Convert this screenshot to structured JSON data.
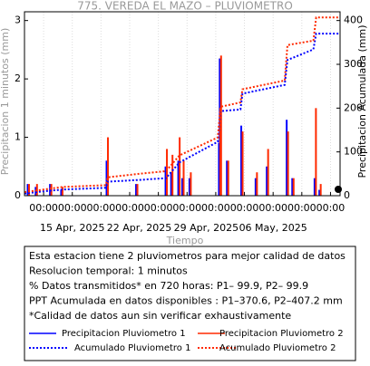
{
  "chart_data": {
    "type": "bar-line",
    "title": "775. VEREDA EL MAZO – PLUVIOMETRO",
    "x_label": "Tiempo",
    "y_label": "Precipitacion 1 minutos (mm)",
    "y2_label": "Precipitacion Acumulada (mm)",
    "xlim": [
      "2025-04-10T00:00",
      "2025-05-13T00:00"
    ],
    "ylim": [
      0,
      3.15
    ],
    "yticks": [
      0,
      1,
      2,
      3
    ],
    "y2lim": [
      0,
      420
    ],
    "y2ticks": [
      0,
      100,
      200,
      300,
      400
    ],
    "xticks": [
      {
        "value": "2025-04-12T00:00",
        "label": "00:00"
      },
      {
        "value": "2025-04-15T00:00",
        "label": "00:00"
      },
      {
        "value": "2025-04-18T00:00",
        "label": "00:00"
      },
      {
        "value": "2025-04-21T00:00",
        "label": "00:00"
      },
      {
        "value": "2025-04-24T00:00",
        "label": "00:00"
      },
      {
        "value": "2025-04-27T00:00",
        "label": "00:00"
      },
      {
        "value": "2025-04-30T00:00",
        "label": "00:00"
      },
      {
        "value": "2025-05-03T00:00",
        "label": "00:00"
      },
      {
        "value": "2025-05-06T00:00",
        "label": "00:00"
      },
      {
        "value": "2025-05-09T00:00",
        "label": "00:00"
      },
      {
        "value": "2025-05-12T00:00",
        "label": "00:00"
      }
    ],
    "xdate_ticks": [
      {
        "value": "2025-04-15T00:00",
        "label": "15 Apr, 2025"
      },
      {
        "value": "2025-04-22T00:00",
        "label": "22 Apr, 2025"
      },
      {
        "value": "2025-04-29T00:00",
        "label": "29 Apr, 2025"
      },
      {
        "value": "2025-05-06T00:00",
        "label": "06 May, 2025"
      }
    ],
    "grid": true,
    "series": [
      {
        "name": "Precipitacion Pluviometro 1",
        "kind": "bar",
        "color": "#0000ff",
        "x": [
          "2025-04-10T08:00",
          "2025-04-11T04:00",
          "2025-04-12T16:00",
          "2025-04-13T20:00",
          "2025-04-18T14:00",
          "2025-04-21T16:00",
          "2025-04-24T18:00",
          "2025-04-25T08:00",
          "2025-04-26T02:00",
          "2025-04-26T12:00",
          "2025-04-27T06:00",
          "2025-04-30T08:00",
          "2025-04-30T10:00",
          "2025-05-01T04:00",
          "2025-05-02T16:00",
          "2025-05-04T04:00",
          "2025-05-05T08:00",
          "2025-05-07T10:00",
          "2025-05-08T00:00",
          "2025-05-10T08:00",
          "2025-05-10T20:00"
        ],
        "values": [
          0.2,
          0.15,
          0.2,
          0.1,
          0.6,
          0.2,
          0.5,
          0.4,
          0.6,
          0.3,
          0.3,
          0.9,
          2.35,
          0.6,
          1.2,
          0.3,
          0.5,
          1.3,
          0.3,
          0.3,
          0.1
        ]
      },
      {
        "name": "Precipitacion Pluviometro 2",
        "kind": "bar",
        "color": "#ff2a00",
        "x": [
          "2025-04-10T08:00",
          "2025-04-11T04:00",
          "2025-04-12T16:00",
          "2025-04-13T20:00",
          "2025-04-18T14:00",
          "2025-04-21T16:00",
          "2025-04-24T18:00",
          "2025-04-25T08:00",
          "2025-04-26T02:00",
          "2025-04-26T12:00",
          "2025-04-27T06:00",
          "2025-04-30T08:00",
          "2025-04-30T10:00",
          "2025-05-01T04:00",
          "2025-05-02T16:00",
          "2025-05-04T04:00",
          "2025-05-05T08:00",
          "2025-05-07T10:00",
          "2025-05-08T00:00",
          "2025-05-10T08:00",
          "2025-05-10T20:00"
        ],
        "values": [
          0.2,
          0.2,
          0.2,
          0.15,
          1.0,
          0.2,
          0.8,
          0.7,
          1.0,
          0.6,
          0.4,
          1.5,
          2.4,
          0.6,
          1.1,
          0.4,
          0.8,
          1.1,
          0.3,
          1.5,
          0.2
        ]
      },
      {
        "name": "Acumulado Pluviometro 1",
        "kind": "line",
        "axis": "y2",
        "color": "#0000ff",
        "x": [
          "2025-04-10T00:00",
          "2025-04-12T00:00",
          "2025-04-14T00:00",
          "2025-04-18T12:00",
          "2025-04-18T17:00",
          "2025-04-22T00:00",
          "2025-04-24T19:00",
          "2025-04-26T05:00",
          "2025-04-30T05:00",
          "2025-04-30T12:00",
          "2025-05-02T14:00",
          "2025-05-02T19:00",
          "2025-05-07T05:00",
          "2025-05-07T12:00",
          "2025-05-10T05:00",
          "2025-05-10T12:00",
          "2025-05-13T00:00"
        ],
        "values": [
          5,
          10,
          14,
          18,
          32,
          36,
          40,
          76,
          123,
          193,
          197,
          233,
          253,
          310,
          334,
          370,
          370
        ]
      },
      {
        "name": "Acumulado Pluviometro 2",
        "kind": "line",
        "axis": "y2",
        "color": "#ff2a00",
        "x": [
          "2025-04-10T00:00",
          "2025-04-12T00:00",
          "2025-04-14T00:00",
          "2025-04-18T12:00",
          "2025-04-18T17:00",
          "2025-04-22T00:00",
          "2025-04-24T19:00",
          "2025-04-26T05:00",
          "2025-04-30T05:00",
          "2025-04-30T12:00",
          "2025-05-02T14:00",
          "2025-05-02T19:00",
          "2025-05-07T05:00",
          "2025-05-07T12:00",
          "2025-05-10T05:00",
          "2025-05-10T12:00",
          "2025-05-13T00:00"
        ],
        "values": [
          8,
          14,
          20,
          24,
          42,
          50,
          56,
          92,
          133,
          203,
          213,
          243,
          263,
          344,
          354,
          407,
          407
        ]
      }
    ],
    "notes": [
      "Esta estacion tiene 2 pluviometros para mejor calidad de datos",
      "Resolucion temporal: 1 minutos",
      "% Datos transmitidos* en 720 horas: P1– 99.9, P2– 99.9",
      "PPT Acumulada en datos disponibles : P1–370.6, P2–407.2 mm",
      "*Calidad de datos aun sin verificar exhaustivamente"
    ]
  }
}
